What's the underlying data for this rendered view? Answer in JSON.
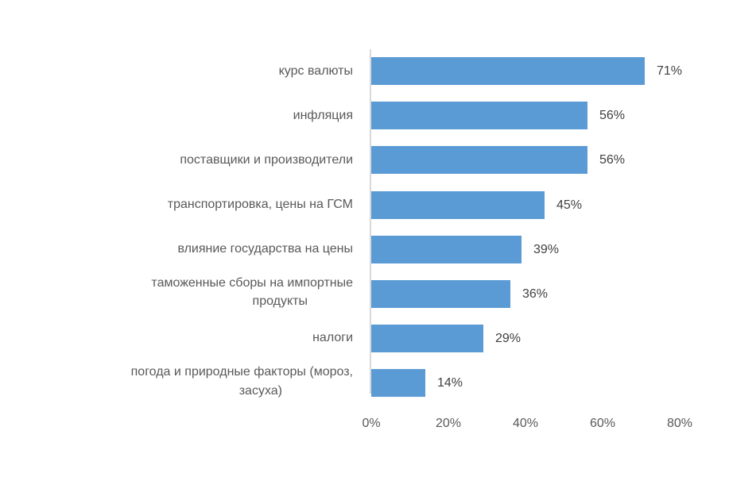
{
  "chart_data": {
    "type": "bar",
    "orientation": "horizontal",
    "title": "",
    "xlabel": "",
    "ylabel": "",
    "categories": [
      "курс валюты",
      "инфляция",
      "поставщики и производители",
      "транспортировка, цены на ГСМ",
      "влияние государства на цены",
      "таможенные сборы на импортные продукты",
      "налоги",
      "погода и природные факторы (мороз, засуха)"
    ],
    "values": [
      71,
      56,
      56,
      45,
      39,
      36,
      29,
      14
    ],
    "value_labels": [
      "71%",
      "56%",
      "56%",
      "45%",
      "39%",
      "36%",
      "29%",
      "14%"
    ],
    "xlim": [
      0,
      80
    ],
    "xticks": [
      "0%",
      "20%",
      "40%",
      "60%",
      "80%"
    ],
    "grid": false,
    "legend": null,
    "bar_color": "#5b9bd5"
  },
  "labels": {
    "cat0": "курс валюты",
    "cat1": "инфляция",
    "cat2": "поставщики и производители",
    "cat3": "транспортировка, цены на ГСМ",
    "cat4": "влияние государства на цены",
    "cat5a": "таможенные сборы на импортные",
    "cat5b": "продукты",
    "cat6": "налоги",
    "cat7a": "погода и природные факторы (мороз,",
    "cat7b": "засуха)"
  }
}
